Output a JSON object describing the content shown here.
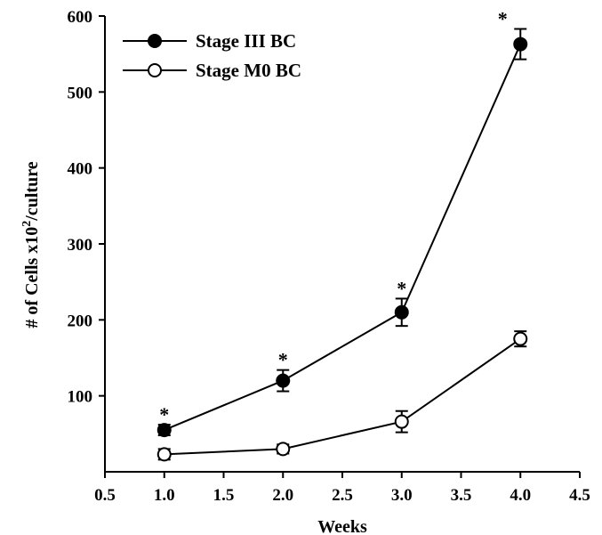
{
  "chart_data": {
    "type": "line",
    "xlabel": "Weeks",
    "ylabel_main": "# of Cells x10",
    "ylabel_sup": "2",
    "ylabel_tail": "/culture",
    "xlim": [
      0.5,
      4.5
    ],
    "ylim": [
      0,
      600
    ],
    "xticks": [
      0.5,
      1.0,
      1.5,
      2.0,
      2.5,
      3.0,
      3.5,
      4.0,
      4.5
    ],
    "xtick_labels": [
      "0.5",
      "1.0",
      "1.5",
      "2.0",
      "2.5",
      "3.0",
      "3.5",
      "4.0",
      "4.5"
    ],
    "yticks": [
      100,
      200,
      300,
      400,
      500,
      600
    ],
    "ytick_labels": [
      "100",
      "200",
      "300",
      "400",
      "500",
      "600"
    ],
    "grid": false,
    "legend_position": "top-left",
    "series": [
      {
        "name": "Stage III BC",
        "marker": "filled-circle",
        "x": [
          1.0,
          2.0,
          3.0,
          4.0
        ],
        "y": [
          55,
          120,
          210,
          563
        ],
        "err": [
          7,
          14,
          18,
          20
        ],
        "significance": [
          "*",
          "*",
          "*",
          "*"
        ]
      },
      {
        "name": "Stage M0 BC",
        "marker": "open-circle",
        "x": [
          1.0,
          2.0,
          3.0,
          4.0
        ],
        "y": [
          23,
          30,
          66,
          175
        ],
        "err": [
          7,
          6,
          14,
          10
        ],
        "significance": [
          "",
          "",
          "",
          ""
        ]
      }
    ]
  }
}
